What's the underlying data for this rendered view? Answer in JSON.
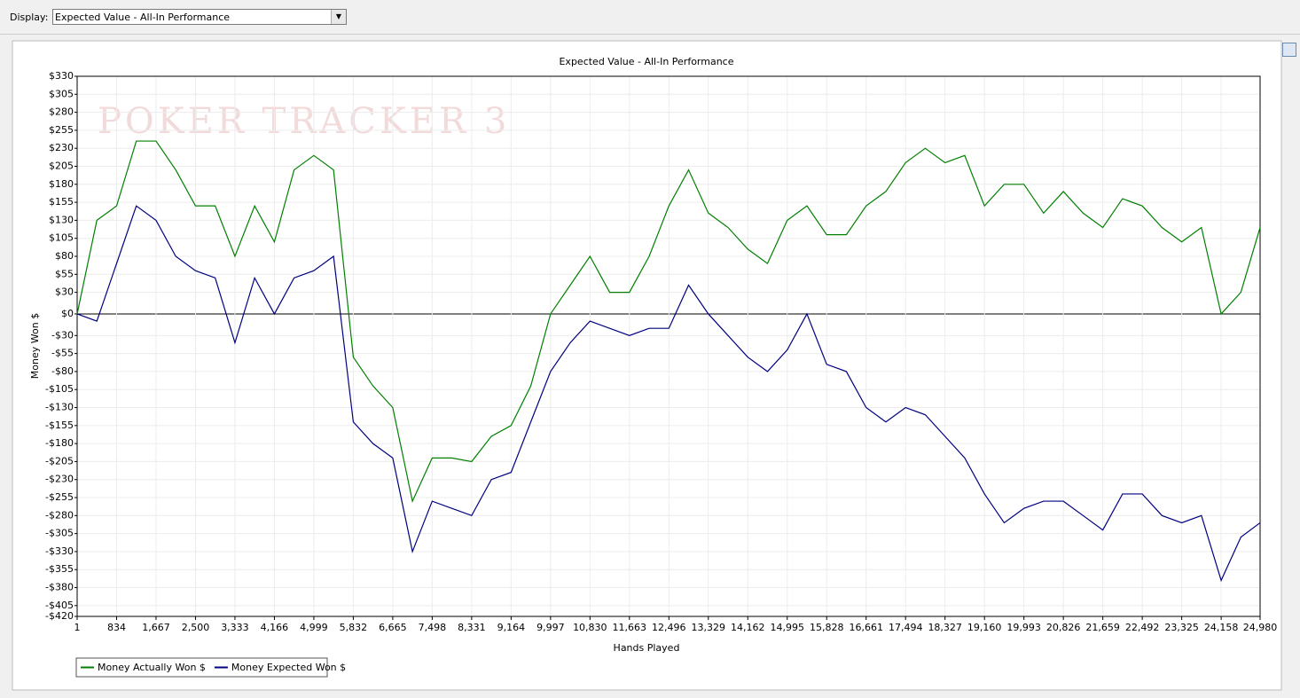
{
  "ui": {
    "display_label": "Display:",
    "display_value": "Expected Value - All-In Performance"
  },
  "watermark": "POKER TRACKER 3",
  "chart_data": {
    "type": "line",
    "title": "Expected Value - All-In Performance",
    "xlabel": "Hands Played",
    "ylabel": "Money Won $",
    "x": [
      1,
      417,
      834,
      1250,
      1667,
      2083,
      2500,
      2916,
      3333,
      3749,
      4166,
      4582,
      4999,
      5415,
      5832,
      6248,
      6665,
      7081,
      7498,
      7914,
      8331,
      8747,
      9164,
      9580,
      9997,
      10413,
      10830,
      11246,
      11663,
      12079,
      12496,
      12912,
      13329,
      13745,
      14162,
      14578,
      14995,
      15411,
      15828,
      16244,
      16661,
      17077,
      17494,
      17910,
      18327,
      18743,
      19160,
      19576,
      19993,
      20409,
      20826,
      21242,
      21659,
      22075,
      22492,
      22908,
      23325,
      23741,
      24158,
      24574,
      24980
    ],
    "series": [
      {
        "name": "Money Actually Won $",
        "color": "#008000",
        "values": [
          0,
          130,
          150,
          240,
          240,
          200,
          150,
          150,
          80,
          150,
          100,
          200,
          220,
          200,
          -60,
          -100,
          -130,
          -260,
          -200,
          -200,
          -205,
          -170,
          -155,
          -100,
          0,
          40,
          80,
          30,
          30,
          80,
          150,
          200,
          140,
          120,
          90,
          70,
          130,
          150,
          110,
          110,
          150,
          170,
          210,
          230,
          210,
          220,
          150,
          180,
          180,
          140,
          170,
          140,
          120,
          160,
          150,
          120,
          100,
          120,
          0,
          30,
          120
        ]
      },
      {
        "name": "Money Expected Won $",
        "color": "#000080",
        "values": [
          0,
          -10,
          70,
          150,
          130,
          80,
          60,
          50,
          -40,
          50,
          0,
          50,
          60,
          80,
          -150,
          -180,
          -200,
          -330,
          -260,
          -270,
          -280,
          -230,
          -220,
          -150,
          -80,
          -40,
          -10,
          -20,
          -30,
          -20,
          -20,
          40,
          0,
          -30,
          -60,
          -80,
          -50,
          0,
          -70,
          -80,
          -130,
          -150,
          -130,
          -140,
          -170,
          -200,
          -250,
          -290,
          -270,
          -260,
          -260,
          -280,
          -300,
          -250,
          -250,
          -280,
          -290,
          -280,
          -370,
          -310,
          -290
        ]
      }
    ],
    "xlim": [
      1,
      24980
    ],
    "xticks": [
      1,
      834,
      {
        "value": 1667,
        "label": "1,667"
      },
      {
        "value": 2500,
        "label": "2,500"
      },
      {
        "value": 3333,
        "label": "3,333"
      },
      {
        "value": 4166,
        "label": "4,166"
      },
      {
        "value": 4999,
        "label": "4,999"
      },
      {
        "value": 5832,
        "label": "5,832"
      },
      {
        "value": 6665,
        "label": "6,665"
      },
      {
        "value": 7498,
        "label": "7,498"
      },
      {
        "value": 8331,
        "label": "8,331"
      },
      {
        "value": 9164,
        "label": "9,164"
      },
      {
        "value": 9997,
        "label": "9,997"
      },
      {
        "value": 10830,
        "label": "10,830"
      },
      {
        "value": 11663,
        "label": "11,663"
      },
      {
        "value": 12496,
        "label": "12,496"
      },
      {
        "value": 13329,
        "label": "13,329"
      },
      {
        "value": 14162,
        "label": "14,162"
      },
      {
        "value": 14995,
        "label": "14,995"
      },
      {
        "value": 15828,
        "label": "15,828"
      },
      {
        "value": 16661,
        "label": "16,661"
      },
      {
        "value": 17494,
        "label": "17,494"
      },
      {
        "value": 18327,
        "label": "18,327"
      },
      {
        "value": 19160,
        "label": "19,160"
      },
      {
        "value": 19993,
        "label": "19,993"
      },
      {
        "value": 20826,
        "label": "20,826"
      },
      {
        "value": 21659,
        "label": "21,659"
      },
      {
        "value": 22492,
        "label": "22,492"
      },
      {
        "value": 23325,
        "label": "23,325"
      },
      {
        "value": 24158,
        "label": "24,158"
      },
      {
        "value": 24980,
        "label": "24,980"
      }
    ],
    "ylim": [
      -420,
      330
    ],
    "yticks": [
      {
        "value": 330,
        "label": "$330"
      },
      {
        "value": 305,
        "label": "$305"
      },
      {
        "value": 280,
        "label": "$280"
      },
      {
        "value": 255,
        "label": "$255"
      },
      {
        "value": 230,
        "label": "$230"
      },
      {
        "value": 205,
        "label": "$205"
      },
      {
        "value": 180,
        "label": "$180"
      },
      {
        "value": 155,
        "label": "$155"
      },
      {
        "value": 130,
        "label": "$130"
      },
      {
        "value": 105,
        "label": "$105"
      },
      {
        "value": 80,
        "label": "$80"
      },
      {
        "value": 55,
        "label": "$55"
      },
      {
        "value": 30,
        "label": "$30"
      },
      {
        "value": 0,
        "label": "$0"
      },
      {
        "value": -30,
        "label": "-$30"
      },
      {
        "value": -55,
        "label": "-$55"
      },
      {
        "value": -80,
        "label": "-$80"
      },
      {
        "value": -105,
        "label": "-$105"
      },
      {
        "value": -130,
        "label": "-$130"
      },
      {
        "value": -155,
        "label": "-$155"
      },
      {
        "value": -180,
        "label": "-$180"
      },
      {
        "value": -205,
        "label": "-$205"
      },
      {
        "value": -230,
        "label": "-$230"
      },
      {
        "value": -255,
        "label": "-$255"
      },
      {
        "value": -280,
        "label": "-$280"
      },
      {
        "value": -305,
        "label": "-$305"
      },
      {
        "value": -330,
        "label": "-$330"
      },
      {
        "value": -355,
        "label": "-$355"
      },
      {
        "value": -380,
        "label": "-$380"
      },
      {
        "value": -405,
        "label": "-$405"
      },
      {
        "value": -420,
        "label": "-$420"
      }
    ],
    "grid": true,
    "legend": "bottom-left"
  }
}
